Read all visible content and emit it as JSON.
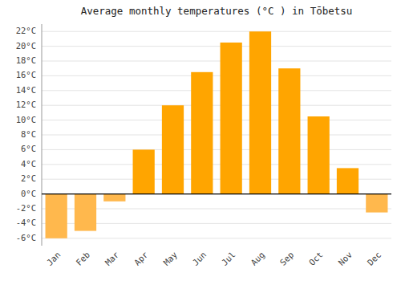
{
  "chart_data": {
    "type": "bar",
    "title": "Average monthly temperatures (°C ) in Tōbetsu",
    "categories": [
      "Jan",
      "Feb",
      "Mar",
      "Apr",
      "May",
      "Jun",
      "Jul",
      "Aug",
      "Sep",
      "Oct",
      "Nov",
      "Dec"
    ],
    "values": [
      -6.0,
      -5.0,
      -1.0,
      6.0,
      12.0,
      16.5,
      20.5,
      22.0,
      17.0,
      10.5,
      3.5,
      -2.5
    ],
    "colors": [
      "#FFB84D",
      "#FFB84D",
      "#FFB84D",
      "#FFA500",
      "#FFA500",
      "#FFA500",
      "#FFA500",
      "#FFA500",
      "#FFA500",
      "#FFA500",
      "#FFA500",
      "#FFB84D"
    ],
    "ylim": [
      -7,
      23
    ],
    "yticks": [
      {
        "value": -6,
        "label": "-6°C"
      },
      {
        "value": -4,
        "label": "-4°C"
      },
      {
        "value": -2,
        "label": "-2°C"
      },
      {
        "value": 0,
        "label": "0°C"
      },
      {
        "value": 2,
        "label": "2°C"
      },
      {
        "value": 4,
        "label": "4°C"
      },
      {
        "value": 6,
        "label": "6°C"
      },
      {
        "value": 8,
        "label": "8°C"
      },
      {
        "value": 10,
        "label": "10°C"
      },
      {
        "value": 12,
        "label": "12°C"
      },
      {
        "value": 14,
        "label": "14°C"
      },
      {
        "value": 16,
        "label": "16°C"
      },
      {
        "value": 18,
        "label": "18°C"
      },
      {
        "value": 20,
        "label": "20°C"
      },
      {
        "value": 22,
        "label": "22°C"
      }
    ],
    "grid": true
  }
}
